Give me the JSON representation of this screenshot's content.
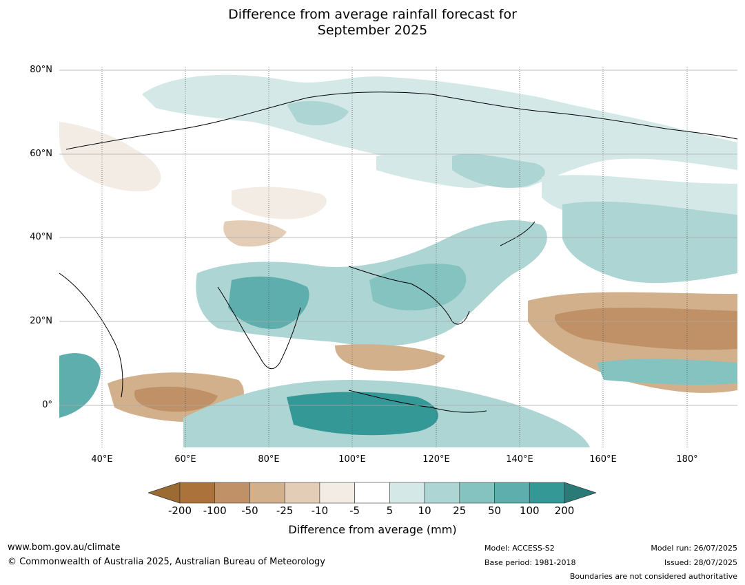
{
  "title_line1": "Difference from average rainfall forecast for",
  "title_line2": "September 2025",
  "lat_labels": [
    "80°N",
    "60°N",
    "40°N",
    "20°N",
    "0°"
  ],
  "lon_labels": [
    "40°E",
    "60°E",
    "80°E",
    "100°E",
    "120°E",
    "140°E",
    "160°E",
    "180°"
  ],
  "legend": {
    "colors": [
      "#9c6a33",
      "#ab733b",
      "#c09166",
      "#d2b08c",
      "#e3cdb7",
      "#f2ece5",
      "#ffffff",
      "#d4e9e7",
      "#acd5d3",
      "#85c3c1",
      "#5eaead",
      "#349896",
      "#2a7a77"
    ],
    "ticks": [
      "-200",
      "-100",
      "-50",
      "-25",
      "-10",
      "-5",
      "5",
      "10",
      "25",
      "50",
      "100",
      "200"
    ],
    "label": "Difference from average (mm)"
  },
  "footer": {
    "website": "www.bom.gov.au/climate",
    "copyright": "© Commonwealth of Australia 2025, Australian Bureau of Meteorology",
    "model": "Model: ACCESS-S2",
    "base_period": "Base period: 1981-2018",
    "model_run": "Model run: 26/07/2025",
    "issued": "Issued: 28/07/2025",
    "disclaimer": "Boundaries are not considered authoritative"
  }
}
